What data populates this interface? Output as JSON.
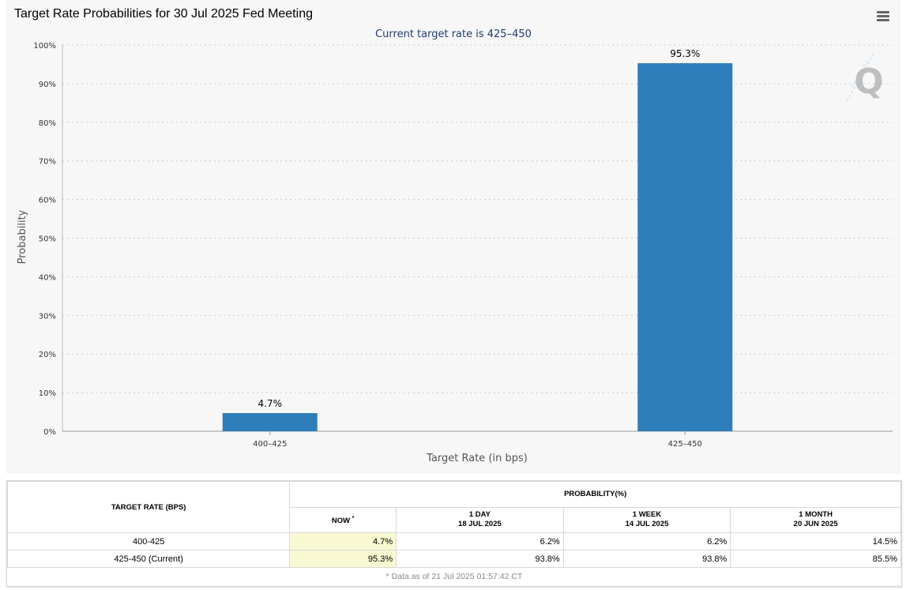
{
  "chart": {
    "title": "Target Rate Probabilities for 30 Jul 2025 Fed Meeting",
    "subtitle": "Current target rate is 425–450",
    "menu_icon": "hamburger-menu-icon",
    "watermark_icon": "q-logo-watermark"
  },
  "chart_data": {
    "type": "bar",
    "title": "Target Rate Probabilities for 30 Jul 2025 Fed Meeting",
    "subtitle": "Current target rate is 425–450",
    "xlabel": "Target Rate (in bps)",
    "ylabel": "Probability",
    "categories": [
      "400–425",
      "425–450"
    ],
    "values": [
      4.7,
      95.3
    ],
    "data_labels": [
      "4.7%",
      "95.3%"
    ],
    "ylim": [
      0,
      100
    ],
    "yticks": [
      "0%",
      "10%",
      "20%",
      "30%",
      "40%",
      "50%",
      "60%",
      "70%",
      "80%",
      "90%",
      "100%"
    ],
    "grid": true,
    "legend": "none",
    "bar_color": "#2f7ebc",
    "subtitle_color": "#1f3d6e"
  },
  "table": {
    "header_target": "TARGET RATE (BPS)",
    "header_probability": "PROBABILITY(%)",
    "columns": [
      {
        "line1": "NOW",
        "line2": "*"
      },
      {
        "line1": "1 DAY",
        "line2": "18 JUL 2025"
      },
      {
        "line1": "1 WEEK",
        "line2": "14 JUL 2025"
      },
      {
        "line1": "1 MONTH",
        "line2": "20 JUN 2025"
      }
    ],
    "rows": [
      {
        "rate": "400-425",
        "now": "4.7%",
        "day": "6.2%",
        "week": "6.2%",
        "month": "14.5%"
      },
      {
        "rate": "425-450 (Current)",
        "now": "95.3%",
        "day": "93.8%",
        "week": "93.8%",
        "month": "85.5%"
      }
    ],
    "footnote": "* Data as of 21 Jul 2025 01:57:42 CT",
    "now_highlight_color": "#f8f8d2"
  }
}
